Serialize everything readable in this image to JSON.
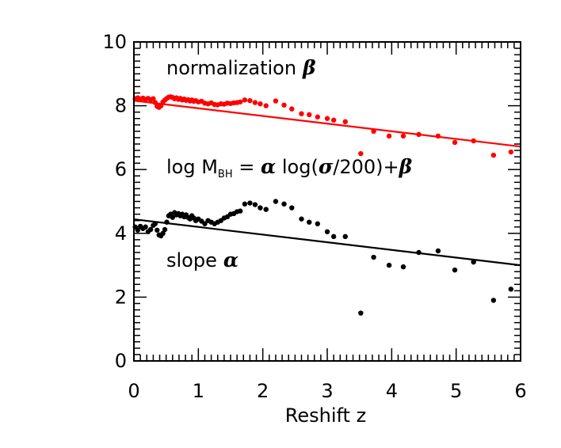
{
  "chart_data": {
    "type": "scatter",
    "xlabel": "Reshift z",
    "ylabel": "",
    "xlim": [
      0,
      6
    ],
    "ylim": [
      0,
      10
    ],
    "x_ticks": [
      "0",
      "1",
      "2",
      "3",
      "4",
      "5",
      "6"
    ],
    "y_ticks": [
      "0",
      "2",
      "4",
      "6",
      "8",
      "10"
    ],
    "grid": false,
    "annotations": {
      "normalization_text": "normalization",
      "normalization_symbol": "β",
      "equation_prefix": "log M",
      "equation_subscript": "BH",
      "equation_mid": " = ",
      "equation_alpha": "α",
      "equation_log": " log(",
      "equation_sigma": "σ",
      "equation_rest": "/200)+",
      "equation_beta": "β",
      "slope_text": "slope",
      "slope_symbol": "α"
    },
    "series": [
      {
        "name": "normalization beta",
        "color": "#ff0000",
        "points": [
          [
            0.02,
            8.22
          ],
          [
            0.06,
            8.25
          ],
          [
            0.1,
            8.21
          ],
          [
            0.14,
            8.24
          ],
          [
            0.18,
            8.2
          ],
          [
            0.22,
            8.23
          ],
          [
            0.26,
            8.19
          ],
          [
            0.3,
            8.22
          ],
          [
            0.33,
            8.1
          ],
          [
            0.36,
            7.98
          ],
          [
            0.39,
            7.95
          ],
          [
            0.42,
            8.0
          ],
          [
            0.45,
            8.12
          ],
          [
            0.48,
            8.18
          ],
          [
            0.51,
            8.23
          ],
          [
            0.54,
            8.27
          ],
          [
            0.57,
            8.28
          ],
          [
            0.6,
            8.26
          ],
          [
            0.63,
            8.22
          ],
          [
            0.66,
            8.25
          ],
          [
            0.69,
            8.2
          ],
          [
            0.72,
            8.23
          ],
          [
            0.75,
            8.18
          ],
          [
            0.78,
            8.21
          ],
          [
            0.81,
            8.17
          ],
          [
            0.84,
            8.19
          ],
          [
            0.87,
            8.15
          ],
          [
            0.9,
            8.18
          ],
          [
            0.93,
            8.14
          ],
          [
            0.96,
            8.16
          ],
          [
            1.0,
            8.12
          ],
          [
            1.05,
            8.14
          ],
          [
            1.1,
            8.08
          ],
          [
            1.15,
            8.06
          ],
          [
            1.2,
            8.09
          ],
          [
            1.25,
            8.04
          ],
          [
            1.3,
            8.03
          ],
          [
            1.35,
            8.06
          ],
          [
            1.4,
            8.05
          ],
          [
            1.45,
            8.08
          ],
          [
            1.5,
            8.07
          ],
          [
            1.55,
            8.09
          ],
          [
            1.6,
            8.1
          ],
          [
            1.65,
            8.12
          ],
          [
            1.72,
            8.18
          ],
          [
            1.8,
            8.16
          ],
          [
            1.88,
            8.1
          ],
          [
            1.96,
            8.06
          ],
          [
            2.05,
            8.0
          ],
          [
            2.2,
            8.15
          ],
          [
            2.33,
            8.02
          ],
          [
            2.45,
            7.9
          ],
          [
            2.6,
            7.75
          ],
          [
            2.72,
            7.72
          ],
          [
            2.85,
            7.65
          ],
          [
            3.0,
            7.6
          ],
          [
            3.1,
            7.55
          ],
          [
            3.28,
            7.5
          ],
          [
            3.52,
            6.5
          ],
          [
            3.72,
            7.2
          ],
          [
            3.96,
            7.05
          ],
          [
            4.18,
            7.05
          ],
          [
            4.42,
            7.1
          ],
          [
            4.72,
            7.05
          ],
          [
            4.98,
            6.85
          ],
          [
            5.27,
            6.9
          ],
          [
            5.58,
            6.45
          ],
          [
            5.85,
            6.55
          ]
        ],
        "fit": {
          "slope": -0.24,
          "intercept": 8.16
        }
      },
      {
        "name": "slope alpha",
        "color": "#000000",
        "points": [
          [
            0.02,
            4.2
          ],
          [
            0.06,
            4.1
          ],
          [
            0.1,
            4.22
          ],
          [
            0.14,
            4.15
          ],
          [
            0.18,
            4.2
          ],
          [
            0.22,
            4.05
          ],
          [
            0.26,
            4.12
          ],
          [
            0.3,
            4.25
          ],
          [
            0.33,
            4.3
          ],
          [
            0.36,
            4.1
          ],
          [
            0.39,
            3.95
          ],
          [
            0.42,
            3.92
          ],
          [
            0.45,
            4.0
          ],
          [
            0.48,
            4.12
          ],
          [
            0.51,
            4.35
          ],
          [
            0.54,
            4.55
          ],
          [
            0.57,
            4.6
          ],
          [
            0.6,
            4.5
          ],
          [
            0.63,
            4.65
          ],
          [
            0.66,
            4.58
          ],
          [
            0.69,
            4.62
          ],
          [
            0.72,
            4.55
          ],
          [
            0.75,
            4.6
          ],
          [
            0.78,
            4.52
          ],
          [
            0.81,
            4.58
          ],
          [
            0.84,
            4.5
          ],
          [
            0.87,
            4.45
          ],
          [
            0.9,
            4.55
          ],
          [
            0.93,
            4.48
          ],
          [
            0.96,
            4.4
          ],
          [
            1.0,
            4.45
          ],
          [
            1.05,
            4.38
          ],
          [
            1.1,
            4.3
          ],
          [
            1.15,
            4.4
          ],
          [
            1.2,
            4.35
          ],
          [
            1.25,
            4.3
          ],
          [
            1.3,
            4.35
          ],
          [
            1.35,
            4.4
          ],
          [
            1.4,
            4.48
          ],
          [
            1.45,
            4.52
          ],
          [
            1.5,
            4.6
          ],
          [
            1.55,
            4.62
          ],
          [
            1.6,
            4.68
          ],
          [
            1.65,
            4.7
          ],
          [
            1.72,
            4.92
          ],
          [
            1.8,
            4.95
          ],
          [
            1.88,
            4.9
          ],
          [
            1.96,
            4.8
          ],
          [
            2.05,
            4.75
          ],
          [
            2.2,
            5.0
          ],
          [
            2.33,
            4.92
          ],
          [
            2.45,
            4.8
          ],
          [
            2.6,
            4.45
          ],
          [
            2.72,
            4.35
          ],
          [
            2.85,
            4.3
          ],
          [
            3.0,
            4.05
          ],
          [
            3.1,
            3.9
          ],
          [
            3.28,
            3.9
          ],
          [
            3.52,
            1.5
          ],
          [
            3.72,
            3.25
          ],
          [
            3.96,
            3.0
          ],
          [
            4.18,
            2.95
          ],
          [
            4.42,
            3.4
          ],
          [
            4.72,
            3.45
          ],
          [
            4.98,
            2.85
          ],
          [
            5.27,
            3.1
          ],
          [
            5.58,
            1.9
          ],
          [
            5.85,
            2.25
          ]
        ],
        "fit": {
          "slope": -0.24,
          "intercept": 4.44
        }
      }
    ]
  }
}
